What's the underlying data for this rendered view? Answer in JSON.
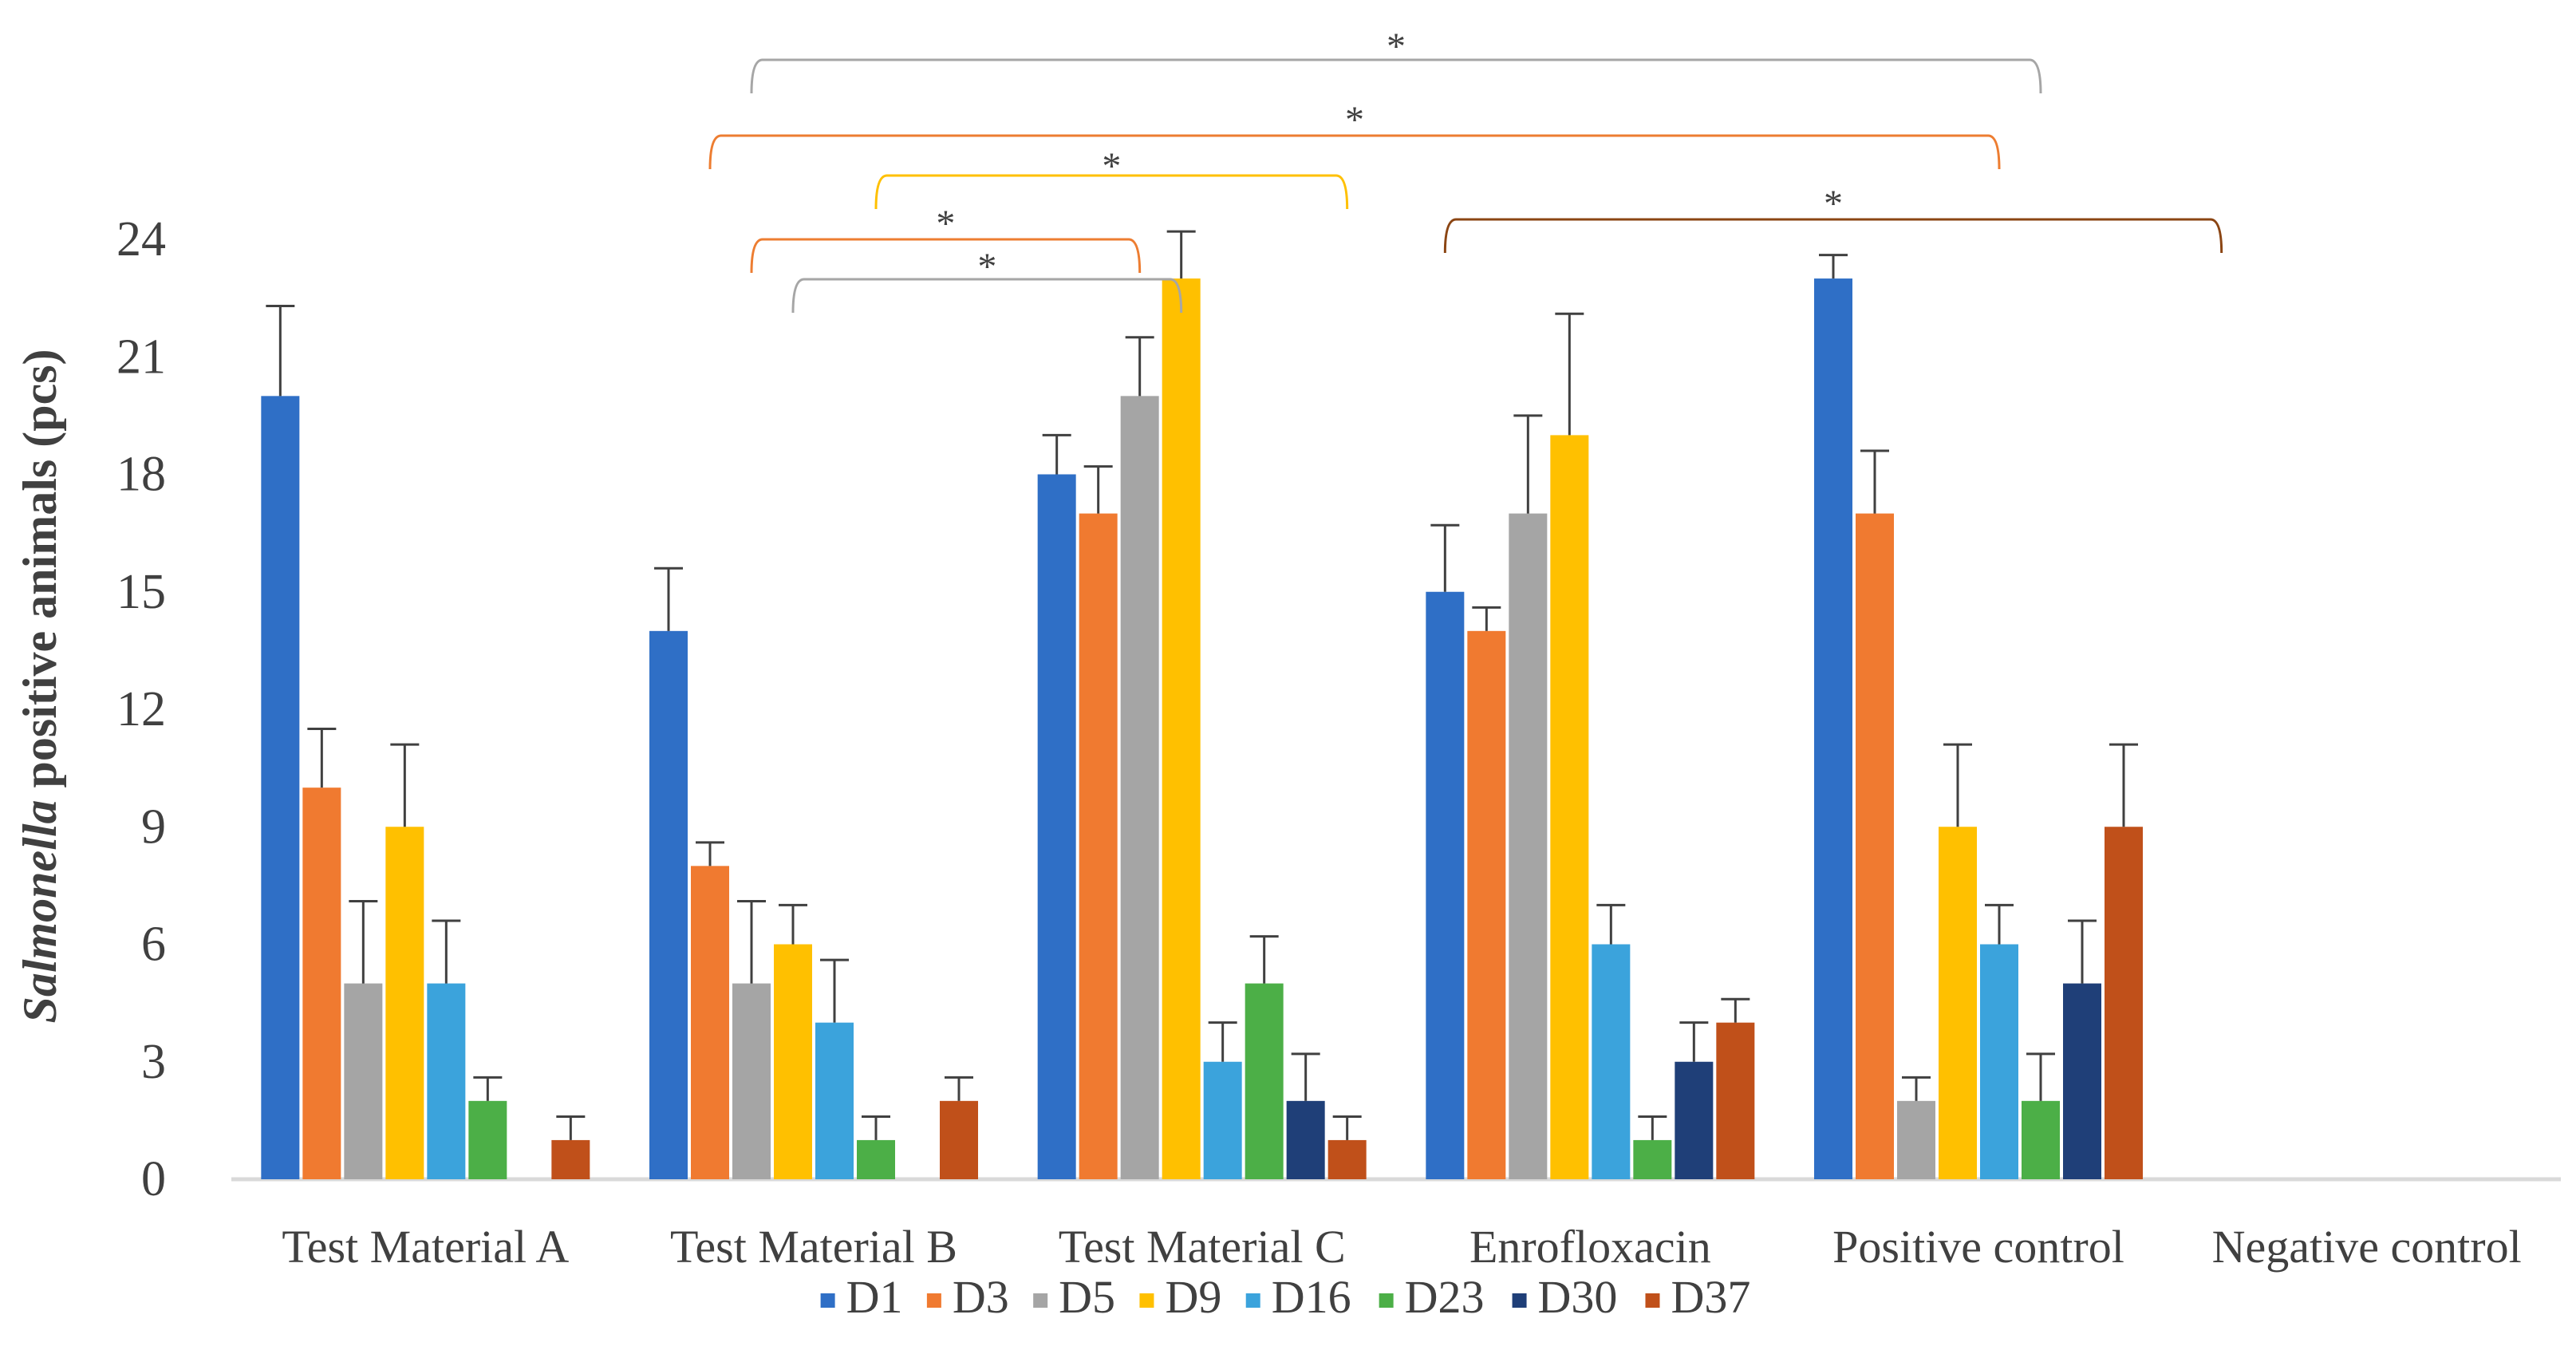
{
  "chart_data": {
    "type": "bar",
    "title": "",
    "ylabel": {
      "italic": "Salmonella",
      "rest": " positive animals (pcs)"
    },
    "xlabel": "",
    "ylim": [
      0,
      24
    ],
    "yticks": [
      0,
      3,
      6,
      9,
      12,
      15,
      18,
      21,
      24
    ],
    "grid": false,
    "legend_position": "bottom",
    "categories": [
      "Test Material A",
      "Test Material B",
      "Test Material C",
      "Enrofloxacin",
      "Positive control",
      "Negative control"
    ],
    "series": [
      {
        "name": "D1",
        "color": "#2f6fc6",
        "values": [
          20,
          14,
          18,
          15,
          23,
          0
        ],
        "errors": [
          2.3,
          1.6,
          1.0,
          1.7,
          0.6,
          0
        ]
      },
      {
        "name": "D3",
        "color": "#f07a30",
        "values": [
          10,
          8,
          17,
          14,
          17,
          0
        ],
        "errors": [
          1.5,
          0.6,
          1.2,
          0.6,
          1.6,
          0
        ]
      },
      {
        "name": "D5",
        "color": "#a5a5a5",
        "values": [
          5,
          5,
          20,
          17,
          2,
          0
        ],
        "errors": [
          2.1,
          2.1,
          1.5,
          2.5,
          0.6,
          0
        ]
      },
      {
        "name": "D9",
        "color": "#ffc000",
        "values": [
          9,
          6,
          23,
          19,
          9,
          0
        ],
        "errors": [
          2.1,
          1.0,
          1.2,
          3.1,
          2.1,
          0
        ]
      },
      {
        "name": "D16",
        "color": "#3ba3dc",
        "values": [
          5,
          4,
          3,
          6,
          6,
          0
        ],
        "errors": [
          1.6,
          1.6,
          1.0,
          1.0,
          1.0,
          0
        ]
      },
      {
        "name": "D23",
        "color": "#4caf47",
        "values": [
          2,
          1,
          5,
          1,
          2,
          0
        ],
        "errors": [
          0.6,
          0.6,
          1.2,
          0.6,
          1.2,
          0
        ]
      },
      {
        "name": "D30",
        "color": "#1f3f78",
        "values": [
          0,
          0,
          2,
          3,
          5,
          0
        ],
        "errors": [
          0,
          0,
          1.2,
          1.0,
          1.6,
          0
        ]
      },
      {
        "name": "D37",
        "color": "#c0501a",
        "values": [
          1,
          2,
          1,
          4,
          9,
          0
        ],
        "errors": [
          0.6,
          0.6,
          0.6,
          0.6,
          2.1,
          0
        ]
      }
    ],
    "annotations": [
      {
        "label": "*",
        "color": "#a6a6a6",
        "from": {
          "category": 1,
          "series": 2
        },
        "to": {
          "category": 4,
          "series": 5
        }
      },
      {
        "label": "*",
        "color": "#ed7d31",
        "from": {
          "category": 1,
          "series": 1
        },
        "to": {
          "category": 4,
          "series": 4
        }
      },
      {
        "label": "*",
        "color": "#ffc000",
        "from": {
          "category": 1,
          "series": 5
        },
        "to": {
          "category": 2,
          "series": 7
        }
      },
      {
        "label": "*",
        "color": "#ed7d31",
        "from": {
          "category": 1,
          "series": 2
        },
        "to": {
          "category": 2,
          "series": 2
        }
      },
      {
        "label": "*",
        "color": "#a6a6a6",
        "from": {
          "category": 1,
          "series": 3
        },
        "to": {
          "category": 2,
          "series": 3
        }
      },
      {
        "label": "*",
        "color": "#8b4513",
        "from": {
          "category": 3,
          "series": 0
        },
        "to": {
          "category": 5,
          "series": 0
        }
      }
    ]
  }
}
